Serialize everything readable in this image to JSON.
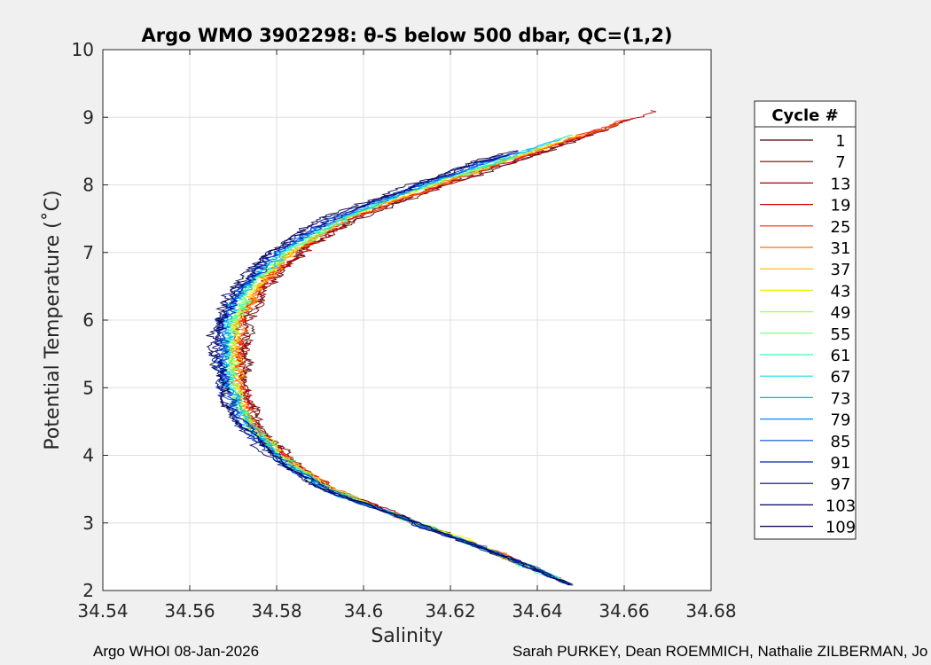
{
  "chart_data": {
    "type": "line",
    "title": "Argo WMO 3902298: θ-S below 500 dbar,  QC=(1,2)",
    "xlabel": "Salinity",
    "ylabel": "Potential Temperature (˚C)",
    "xlim": [
      34.54,
      34.68
    ],
    "ylim": [
      2,
      10
    ],
    "xticks": [
      34.54,
      34.56,
      34.58,
      34.6,
      34.62,
      34.64,
      34.66,
      34.68
    ],
    "xtick_labels": [
      "34.54",
      "34.56",
      "34.58",
      "34.6",
      "34.62",
      "34.64",
      "34.66",
      "34.68"
    ],
    "yticks": [
      2,
      3,
      4,
      5,
      6,
      7,
      8,
      9,
      10
    ],
    "ytick_labels": [
      "2",
      "3",
      "4",
      "5",
      "6",
      "7",
      "8",
      "9",
      "10"
    ],
    "grid": true,
    "legend": {
      "title": "Cycle #",
      "placement": "outside-right",
      "entries": [
        "1",
        "7",
        "13",
        "19",
        "25",
        "31",
        "37",
        "43",
        "49",
        "55",
        "61",
        "67",
        "73",
        "79",
        "85",
        "91",
        "97",
        "103",
        "109"
      ],
      "colors": [
        "#500000",
        "#7a0000",
        "#a80000",
        "#d40000",
        "#ff2400",
        "#ff7000",
        "#ffb400",
        "#f0f000",
        "#a8ff3c",
        "#6cff7c",
        "#30ffb4",
        "#10e0e0",
        "#00b4ff",
        "#0088ff",
        "#0050e0",
        "#0020b0",
        "#000090",
        "#00006c",
        "#000048"
      ]
    },
    "profile_shape": {
      "theta": [
        2.1,
        2.5,
        3.0,
        3.5,
        4.0,
        4.5,
        5.0,
        5.5,
        6.0,
        6.5,
        7.0,
        7.5,
        8.0,
        8.5,
        9.0
      ],
      "salinity_mean": [
        34.647,
        34.633,
        34.612,
        34.592,
        34.58,
        34.573,
        34.57,
        34.569,
        34.57,
        34.574,
        34.582,
        34.595,
        34.615,
        34.638,
        34.66
      ]
    }
  },
  "footer": {
    "left": "Argo WHOI 08-Jan-2026",
    "right": "Sarah PURKEY, Dean ROEMMICH, Nathalie ZILBERMAN, Jo"
  }
}
